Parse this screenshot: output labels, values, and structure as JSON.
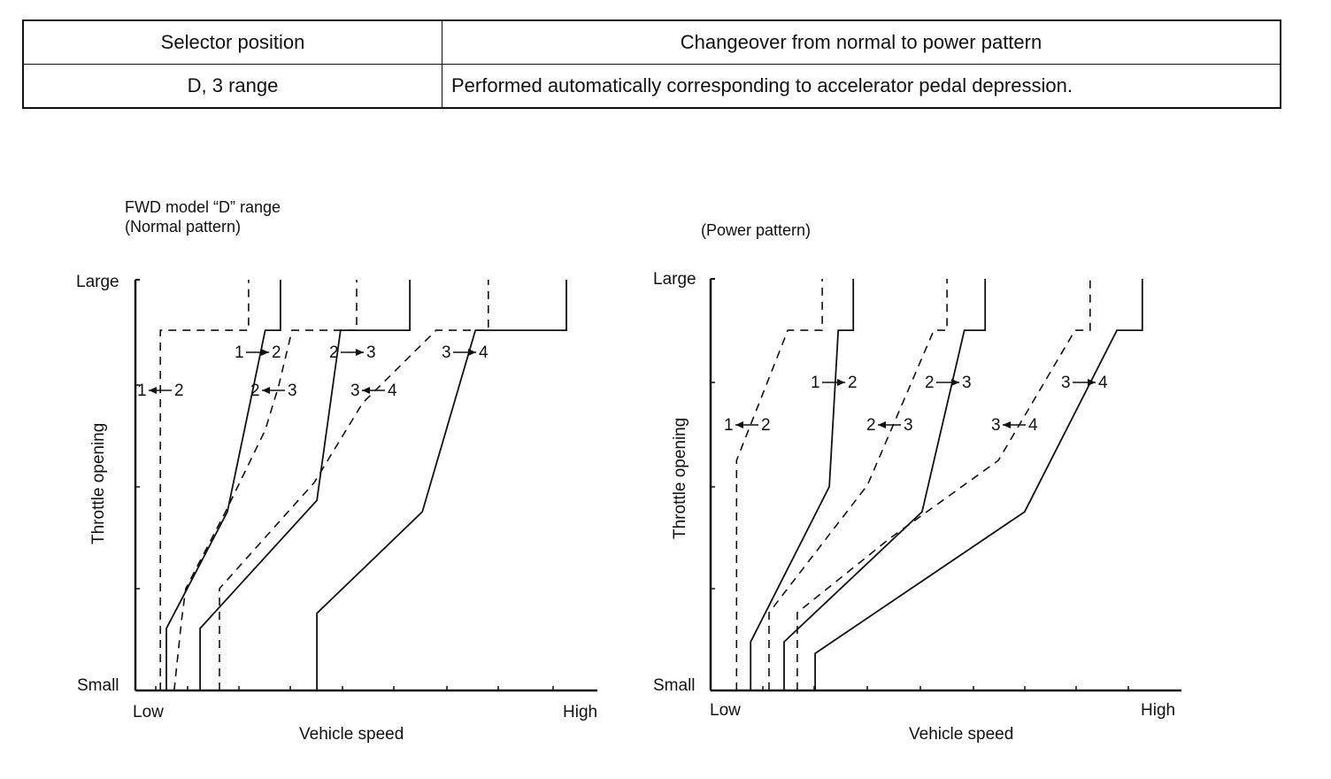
{
  "table": {
    "headers": [
      "Selector position",
      "Changeover from normal to power pattern"
    ],
    "rows": [
      [
        "D, 3 range",
        "Performed automatically corresponding to accelerator pedal depression."
      ]
    ]
  },
  "chart_data": [
    {
      "type": "line",
      "title": "FWD model “D” range",
      "subtitle": "(Normal pattern)",
      "xlabel": "Vehicle speed",
      "ylabel": "Throttle opening",
      "x_tick_labels": {
        "min": "Low",
        "max": "High"
      },
      "y_tick_labels": {
        "min": "Small",
        "max": "Large"
      },
      "xlim": [
        0,
        100
      ],
      "ylim": [
        0,
        100
      ],
      "grid": false,
      "units": "relative (0 = Low/Small, 100 = High/Large)",
      "series": [
        {
          "name": "1→2 upshift",
          "style": "solid",
          "points": [
            [
              6.7,
              0
            ],
            [
              6.7,
              15.1
            ],
            [
              19.9,
              43.5
            ],
            [
              28.1,
              87.7
            ],
            [
              31.4,
              87.7
            ],
            [
              31.4,
              100
            ]
          ]
        },
        {
          "name": "1←2 downshift",
          "style": "dashed",
          "points": [
            [
              5.4,
              0
            ],
            [
              5.4,
              87.7
            ],
            [
              24.5,
              87.7
            ],
            [
              24.5,
              100
            ]
          ]
        },
        {
          "name": "2→3 upshift",
          "style": "solid",
          "points": [
            [
              14,
              0
            ],
            [
              14,
              15.1
            ],
            [
              39.3,
              46.3
            ],
            [
              44.4,
              87.7
            ],
            [
              59.4,
              87.7
            ],
            [
              59.4,
              100
            ]
          ]
        },
        {
          "name": "2←3 downshift",
          "style": "dashed",
          "points": [
            [
              8.4,
              0
            ],
            [
              10,
              17.2
            ],
            [
              10.9,
              24.8
            ],
            [
              19.5,
              43.5
            ],
            [
              28.1,
              63.4
            ],
            [
              31,
              74.1
            ],
            [
              33.9,
              87.7
            ],
            [
              47.9,
              87.7
            ],
            [
              47.9,
              100
            ]
          ]
        },
        {
          "name": "3→4 upshift",
          "style": "solid",
          "points": [
            [
              39.3,
              0
            ],
            [
              39.3,
              18.8
            ],
            [
              62.1,
              43.5
            ],
            [
              73.6,
              87.7
            ],
            [
              93.3,
              87.7
            ],
            [
              93.3,
              100
            ]
          ]
        },
        {
          "name": "3←4 downshift",
          "style": "dashed",
          "points": [
            [
              18.2,
              0
            ],
            [
              18.2,
              24.8
            ],
            [
              38.7,
              50.6
            ],
            [
              49.2,
              70
            ],
            [
              65.1,
              87.7
            ],
            [
              76.4,
              87.7
            ],
            [
              76.4,
              100
            ]
          ]
        }
      ],
      "annotations": [
        {
          "text": "1←2",
          "from": "1",
          "to": "2",
          "direction": "down"
        },
        {
          "text": "1→2",
          "from": "1",
          "to": "2",
          "direction": "up"
        },
        {
          "text": "2←3",
          "from": "2",
          "to": "3",
          "direction": "down"
        },
        {
          "text": "2→3",
          "from": "2",
          "to": "3",
          "direction": "up"
        },
        {
          "text": "3←4",
          "from": "3",
          "to": "4",
          "direction": "down"
        },
        {
          "text": "3→4",
          "from": "3",
          "to": "4",
          "direction": "up"
        }
      ]
    },
    {
      "type": "line",
      "title": "",
      "subtitle": "(Power pattern)",
      "xlabel": "Vehicle speed",
      "ylabel": "Throttle opening",
      "x_tick_labels": {
        "min": "Low",
        "max": "High"
      },
      "y_tick_labels": {
        "min": "Small",
        "max": "Large"
      },
      "xlim": [
        0,
        100
      ],
      "ylim": [
        0,
        100
      ],
      "grid": false,
      "units": "relative (0 = Low/Small, 100 = High/Large)",
      "series": [
        {
          "name": "1→2 upshift",
          "style": "solid",
          "points": [
            [
              8.5,
              0
            ],
            [
              8.5,
              11.8
            ],
            [
              25.2,
              49.5
            ],
            [
              27.1,
              87.5
            ],
            [
              30.3,
              87.5
            ],
            [
              30.3,
              100
            ]
          ]
        },
        {
          "name": "1←2 downshift",
          "style": "dashed",
          "points": [
            [
              5.5,
              0
            ],
            [
              5.5,
              55.9
            ],
            [
              16.4,
              87.5
            ],
            [
              23.7,
              87.5
            ],
            [
              23.7,
              100
            ]
          ]
        },
        {
          "name": "2→3 upshift",
          "style": "solid",
          "points": [
            [
              15.6,
              0
            ],
            [
              15.6,
              11.8
            ],
            [
              44.9,
              43.4
            ],
            [
              53.9,
              87.5
            ],
            [
              58.3,
              87.5
            ],
            [
              58.3,
              100
            ]
          ]
        },
        {
          "name": "2←3 downshift",
          "style": "dashed",
          "points": [
            [
              12.4,
              0
            ],
            [
              12.4,
              18.9
            ],
            [
              33.3,
              49.9
            ],
            [
              47.4,
              87.5
            ],
            [
              50.2,
              87.5
            ],
            [
              50.2,
              100
            ]
          ]
        },
        {
          "name": "3→4 upshift",
          "style": "solid",
          "points": [
            [
              22.2,
              0
            ],
            [
              22.2,
              9
            ],
            [
              66.7,
              43.4
            ],
            [
              86.3,
              87.5
            ],
            [
              91.7,
              87.5
            ],
            [
              91.7,
              100
            ]
          ]
        },
        {
          "name": "3←4 downshift",
          "style": "dashed",
          "points": [
            [
              18.4,
              0
            ],
            [
              18.4,
              18.9
            ],
            [
              38,
              36.9
            ],
            [
              61.1,
              55.9
            ],
            [
              77.4,
              87.5
            ],
            [
              80.6,
              87.5
            ],
            [
              80.6,
              100
            ]
          ]
        }
      ],
      "annotations": [
        {
          "text": "1←2",
          "from": "1",
          "to": "2",
          "direction": "down"
        },
        {
          "text": "1→2",
          "from": "1",
          "to": "2",
          "direction": "up"
        },
        {
          "text": "2←3",
          "from": "2",
          "to": "3",
          "direction": "down"
        },
        {
          "text": "2→3",
          "from": "2",
          "to": "3",
          "direction": "up"
        },
        {
          "text": "3←4",
          "from": "3",
          "to": "4",
          "direction": "down"
        },
        {
          "text": "3→4",
          "from": "3",
          "to": "4",
          "direction": "up"
        }
      ]
    }
  ]
}
